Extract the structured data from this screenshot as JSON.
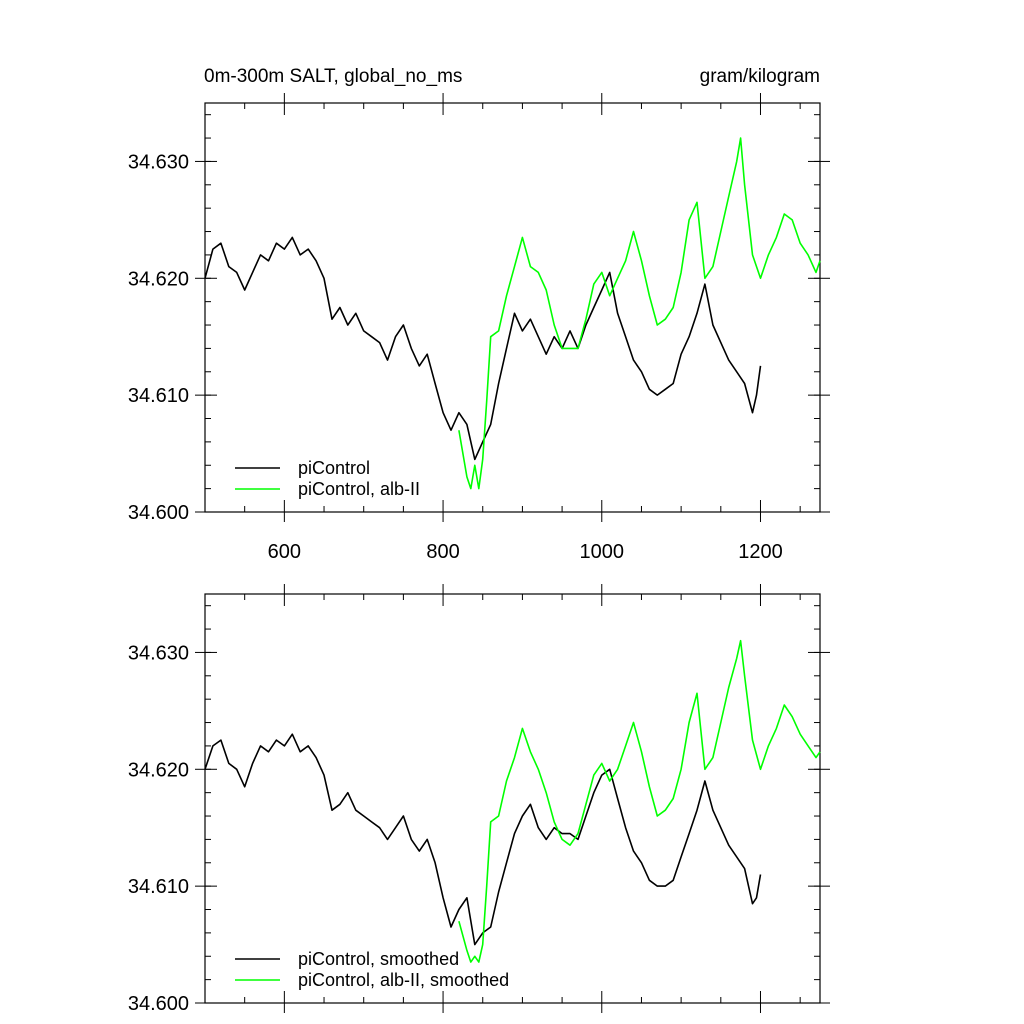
{
  "title_left": "0m-300m SALT, global_no_ms",
  "title_right": "gram/kilogram",
  "chart_data": [
    {
      "type": "line",
      "xlim": [
        500,
        1275
      ],
      "ylim": [
        34.6,
        34.635
      ],
      "x_ticks": [
        "600",
        "800",
        "1000",
        "1200"
      ],
      "x_tick_values": [
        600,
        800,
        1000,
        1200
      ],
      "y_ticks": [
        "34.600",
        "34.610",
        "34.620",
        "34.630"
      ],
      "y_tick_values": [
        34.6,
        34.61,
        34.62,
        34.63
      ],
      "show_x_tick_labels": true,
      "legend_position": "bottom-left",
      "series": [
        {
          "name": "piControl",
          "color": "#000000",
          "x": [
            500,
            510,
            520,
            530,
            540,
            550,
            560,
            570,
            580,
            590,
            600,
            610,
            620,
            630,
            640,
            650,
            660,
            670,
            680,
            690,
            700,
            710,
            720,
            730,
            740,
            750,
            760,
            770,
            780,
            790,
            800,
            810,
            820,
            830,
            840,
            850,
            860,
            870,
            880,
            890,
            900,
            910,
            920,
            930,
            940,
            950,
            960,
            970,
            980,
            990,
            1000,
            1010,
            1020,
            1030,
            1040,
            1050,
            1060,
            1070,
            1080,
            1090,
            1100,
            1110,
            1120,
            1130,
            1140,
            1150,
            1160,
            1170,
            1180,
            1190,
            1195,
            1200
          ],
          "values": [
            34.62,
            34.6225,
            34.623,
            34.621,
            34.6205,
            34.619,
            34.6205,
            34.622,
            34.6215,
            34.623,
            34.6225,
            34.6235,
            34.622,
            34.6225,
            34.6215,
            34.62,
            34.6165,
            34.6175,
            34.616,
            34.617,
            34.6155,
            34.615,
            34.6145,
            34.613,
            34.615,
            34.616,
            34.614,
            34.6125,
            34.6135,
            34.611,
            34.6085,
            34.607,
            34.6085,
            34.6075,
            34.6045,
            34.606,
            34.6075,
            34.611,
            34.614,
            34.617,
            34.6155,
            34.6165,
            34.615,
            34.6135,
            34.615,
            34.614,
            34.6155,
            34.614,
            34.616,
            34.6175,
            34.619,
            34.6205,
            34.617,
            34.615,
            34.613,
            34.612,
            34.6105,
            34.61,
            34.6105,
            34.611,
            34.6135,
            34.615,
            34.617,
            34.6195,
            34.616,
            34.6145,
            34.613,
            34.612,
            34.611,
            34.6085,
            34.61,
            34.6125
          ]
        },
        {
          "name": "piControl, alb-II",
          "color": "#00ff00",
          "x": [
            820,
            830,
            835,
            840,
            845,
            850,
            855,
            860,
            870,
            880,
            890,
            900,
            910,
            920,
            930,
            940,
            950,
            960,
            970,
            980,
            990,
            1000,
            1010,
            1020,
            1030,
            1040,
            1050,
            1060,
            1070,
            1080,
            1090,
            1100,
            1110,
            1120,
            1130,
            1140,
            1150,
            1160,
            1170,
            1175,
            1180,
            1190,
            1200,
            1210,
            1220,
            1230,
            1240,
            1250,
            1260,
            1270,
            1275
          ],
          "values": [
            34.607,
            34.603,
            34.602,
            34.604,
            34.602,
            34.6045,
            34.6095,
            34.615,
            34.6155,
            34.6185,
            34.621,
            34.6235,
            34.621,
            34.6205,
            34.619,
            34.616,
            34.614,
            34.614,
            34.614,
            34.6165,
            34.6195,
            34.6205,
            34.6185,
            34.62,
            34.6215,
            34.624,
            34.6215,
            34.6185,
            34.616,
            34.6165,
            34.6175,
            34.6205,
            34.625,
            34.6265,
            34.62,
            34.621,
            34.624,
            34.627,
            34.63,
            34.632,
            34.628,
            34.622,
            34.62,
            34.622,
            34.6235,
            34.6255,
            34.625,
            34.623,
            34.622,
            34.6205,
            34.6215
          ]
        }
      ]
    },
    {
      "type": "line",
      "xlim": [
        500,
        1275
      ],
      "ylim": [
        34.6,
        34.635
      ],
      "x_ticks": [
        "600",
        "800",
        "1000",
        "1200"
      ],
      "x_tick_values": [
        600,
        800,
        1000,
        1200
      ],
      "y_ticks": [
        "34.600",
        "34.610",
        "34.620",
        "34.630"
      ],
      "y_tick_values": [
        34.6,
        34.61,
        34.62,
        34.63
      ],
      "show_x_tick_labels": false,
      "legend_position": "bottom-left",
      "series": [
        {
          "name": "piControl, smoothed",
          "color": "#000000",
          "x": [
            500,
            510,
            520,
            530,
            540,
            550,
            560,
            570,
            580,
            590,
            600,
            610,
            620,
            630,
            640,
            650,
            660,
            670,
            680,
            690,
            700,
            710,
            720,
            730,
            740,
            750,
            760,
            770,
            780,
            790,
            800,
            810,
            820,
            830,
            840,
            850,
            860,
            870,
            880,
            890,
            900,
            910,
            920,
            930,
            940,
            950,
            960,
            970,
            980,
            990,
            1000,
            1010,
            1020,
            1030,
            1040,
            1050,
            1060,
            1070,
            1080,
            1090,
            1100,
            1110,
            1120,
            1130,
            1140,
            1150,
            1160,
            1170,
            1180,
            1190,
            1195,
            1200
          ],
          "values": [
            34.62,
            34.622,
            34.6225,
            34.6205,
            34.62,
            34.6185,
            34.6205,
            34.622,
            34.6215,
            34.6225,
            34.622,
            34.623,
            34.6215,
            34.622,
            34.621,
            34.6195,
            34.6165,
            34.617,
            34.618,
            34.6165,
            34.616,
            34.6155,
            34.615,
            34.614,
            34.615,
            34.616,
            34.614,
            34.613,
            34.614,
            34.612,
            34.609,
            34.6065,
            34.608,
            34.609,
            34.605,
            34.606,
            34.6065,
            34.6095,
            34.612,
            34.6145,
            34.616,
            34.617,
            34.615,
            34.614,
            34.615,
            34.6145,
            34.6145,
            34.614,
            34.616,
            34.618,
            34.6195,
            34.62,
            34.6175,
            34.615,
            34.613,
            34.612,
            34.6105,
            34.61,
            34.61,
            34.6105,
            34.6125,
            34.6145,
            34.6165,
            34.619,
            34.6165,
            34.615,
            34.6135,
            34.6125,
            34.6115,
            34.6085,
            34.609,
            34.611
          ]
        },
        {
          "name": "piControl, alb-II, smoothed",
          "color": "#00ff00",
          "x": [
            820,
            830,
            835,
            840,
            845,
            850,
            855,
            860,
            870,
            880,
            890,
            900,
            910,
            920,
            930,
            940,
            950,
            960,
            970,
            980,
            990,
            1000,
            1010,
            1020,
            1030,
            1040,
            1050,
            1060,
            1070,
            1080,
            1090,
            1100,
            1110,
            1120,
            1130,
            1140,
            1150,
            1160,
            1170,
            1175,
            1180,
            1190,
            1200,
            1210,
            1220,
            1230,
            1240,
            1250,
            1260,
            1270,
            1275
          ],
          "values": [
            34.607,
            34.6045,
            34.6035,
            34.604,
            34.6035,
            34.605,
            34.61,
            34.6155,
            34.616,
            34.619,
            34.621,
            34.6235,
            34.6215,
            34.62,
            34.618,
            34.6155,
            34.614,
            34.6135,
            34.6145,
            34.617,
            34.6195,
            34.6205,
            34.619,
            34.62,
            34.622,
            34.624,
            34.6215,
            34.6185,
            34.616,
            34.6165,
            34.6175,
            34.62,
            34.624,
            34.6265,
            34.62,
            34.621,
            34.624,
            34.627,
            34.6295,
            34.631,
            34.628,
            34.6225,
            34.62,
            34.622,
            34.6235,
            34.6255,
            34.6245,
            34.623,
            34.622,
            34.621,
            34.6215
          ]
        }
      ]
    }
  ]
}
